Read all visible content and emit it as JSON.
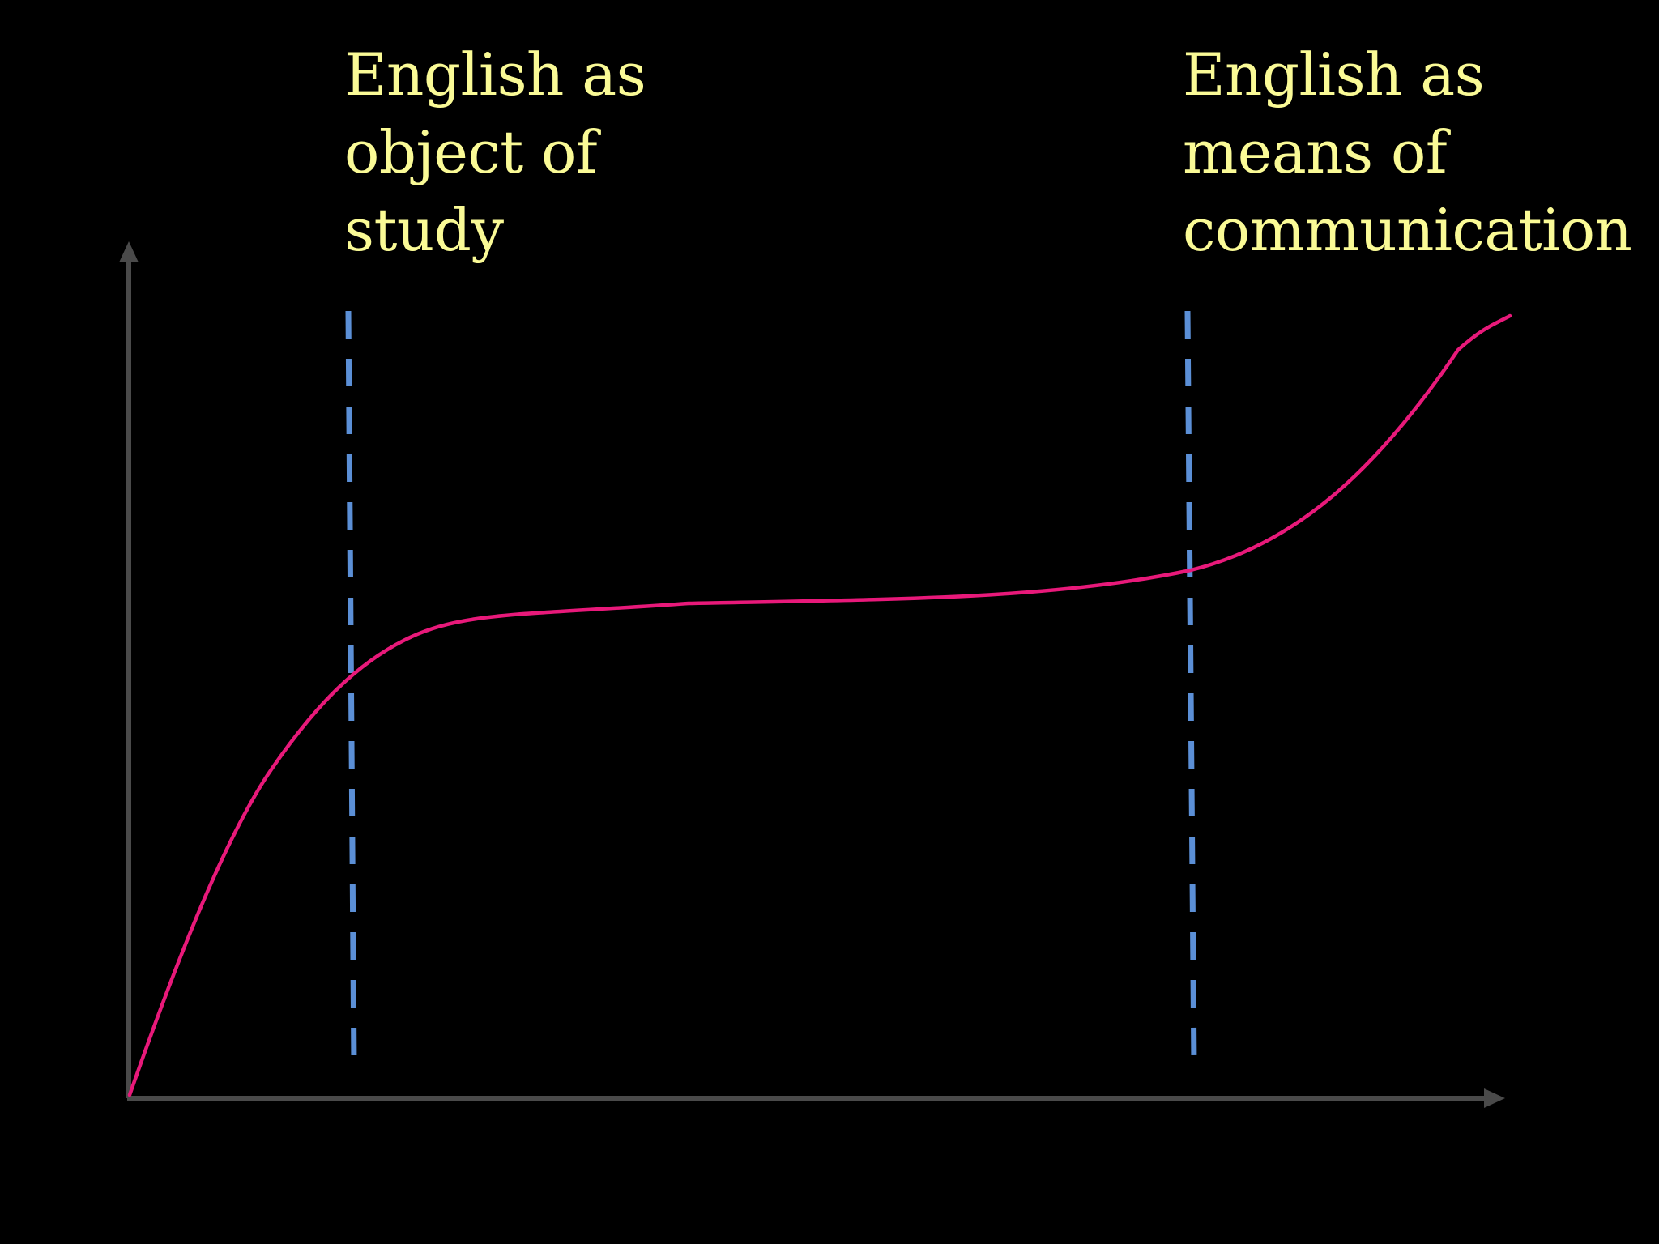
{
  "colors": {
    "background": "#000000",
    "label_text": "#fafa96",
    "axis": "#4a4a4a",
    "divider": "#5b8fd6",
    "curve": "#e8197a"
  },
  "labels": {
    "left": {
      "line1": "English as",
      "line2": "object of",
      "line3": "study"
    },
    "right": {
      "line1": "English as",
      "line2": "means of",
      "line3": "communication"
    }
  }
}
